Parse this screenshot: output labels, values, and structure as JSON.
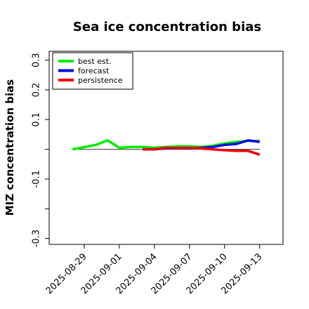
{
  "chart_data": {
    "type": "line",
    "title": "Sea ice concentration bias",
    "ylabel": "MIZ concentration bias",
    "xlabel": "",
    "ylim": [
      -0.32,
      0.33
    ],
    "xlim": [
      "2025-08-26",
      "2025-09-15"
    ],
    "yticks": [
      -0.3,
      -0.2,
      -0.1,
      0.0,
      0.1,
      0.2,
      0.3
    ],
    "yticklabels": [
      "-0.3",
      "",
      "-0.1",
      "",
      "0.1",
      "0.2",
      "0.3"
    ],
    "xticks": [
      "2025-08-29",
      "2025-09-01",
      "2025-09-04",
      "2025-09-07",
      "2025-09-10",
      "2025-09-13"
    ],
    "xticklabels": [
      "2025-08-29",
      "2025-09-01",
      "2025-09-04",
      "2025-09-07",
      "2025-09-10",
      "2025-09-13"
    ],
    "highlighted_tick": "2025-09-04",
    "highlight_color": "#1a8a1a",
    "zero_line": true,
    "grid": false,
    "legend_position": "top-left",
    "series": [
      {
        "name": "best est.",
        "color": "#00ee00",
        "x": [
          "2025-08-28",
          "2025-08-30",
          "2025-08-31",
          "2025-09-01",
          "2025-09-02",
          "2025-09-03",
          "2025-09-04",
          "2025-09-05",
          "2025-09-06",
          "2025-09-07",
          "2025-09-08",
          "2025-09-09",
          "2025-09-10",
          "2025-09-11",
          "2025-09-12",
          "2025-09-13"
        ],
        "values": [
          0.0,
          0.015,
          0.03,
          0.005,
          0.008,
          0.008,
          0.005,
          0.008,
          0.01,
          0.01,
          0.008,
          0.012,
          0.02,
          0.025,
          0.028,
          0.028
        ]
      },
      {
        "name": "forecast",
        "color": "#0000ee",
        "x": [
          "2025-09-03",
          "2025-09-04",
          "2025-09-05",
          "2025-09-06",
          "2025-09-07",
          "2025-09-08",
          "2025-09-09",
          "2025-09-10",
          "2025-09-11",
          "2025-09-12",
          "2025-09-13"
        ],
        "values": [
          0.0,
          0.0,
          0.003,
          0.004,
          0.003,
          0.005,
          0.008,
          0.015,
          0.018,
          0.03,
          0.025
        ]
      },
      {
        "name": "persistence",
        "color": "#ee0000",
        "x": [
          "2025-09-03",
          "2025-09-04",
          "2025-09-05",
          "2025-09-06",
          "2025-09-07",
          "2025-09-08",
          "2025-09-09",
          "2025-09-10",
          "2025-09-11",
          "2025-09-12",
          "2025-09-13"
        ],
        "values": [
          0.0,
          0.0,
          0.005,
          0.004,
          0.005,
          0.003,
          0.0,
          -0.003,
          -0.005,
          -0.005,
          -0.018
        ]
      }
    ]
  }
}
